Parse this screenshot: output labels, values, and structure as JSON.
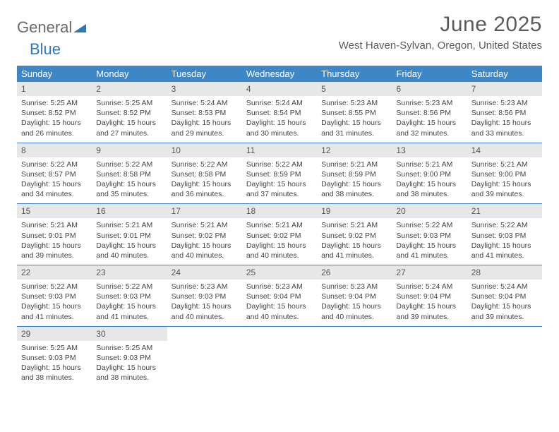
{
  "brand": {
    "word1": "General",
    "word2": "Blue"
  },
  "title": "June 2025",
  "location": "West Haven-Sylvan, Oregon, United States",
  "colors": {
    "header_bg": "#3d87c7",
    "header_text": "#ffffff",
    "daynum_bg": "#e7e7e7",
    "rule": "#3d87c7",
    "body_text": "#444444",
    "title_text": "#5a5a5a"
  },
  "daysOfWeek": [
    "Sunday",
    "Monday",
    "Tuesday",
    "Wednesday",
    "Thursday",
    "Friday",
    "Saturday"
  ],
  "weeks": [
    [
      {
        "n": "1",
        "sunrise": "Sunrise: 5:25 AM",
        "sunset": "Sunset: 8:52 PM",
        "daylight": "Daylight: 15 hours and 26 minutes."
      },
      {
        "n": "2",
        "sunrise": "Sunrise: 5:25 AM",
        "sunset": "Sunset: 8:52 PM",
        "daylight": "Daylight: 15 hours and 27 minutes."
      },
      {
        "n": "3",
        "sunrise": "Sunrise: 5:24 AM",
        "sunset": "Sunset: 8:53 PM",
        "daylight": "Daylight: 15 hours and 29 minutes."
      },
      {
        "n": "4",
        "sunrise": "Sunrise: 5:24 AM",
        "sunset": "Sunset: 8:54 PM",
        "daylight": "Daylight: 15 hours and 30 minutes."
      },
      {
        "n": "5",
        "sunrise": "Sunrise: 5:23 AM",
        "sunset": "Sunset: 8:55 PM",
        "daylight": "Daylight: 15 hours and 31 minutes."
      },
      {
        "n": "6",
        "sunrise": "Sunrise: 5:23 AM",
        "sunset": "Sunset: 8:56 PM",
        "daylight": "Daylight: 15 hours and 32 minutes."
      },
      {
        "n": "7",
        "sunrise": "Sunrise: 5:23 AM",
        "sunset": "Sunset: 8:56 PM",
        "daylight": "Daylight: 15 hours and 33 minutes."
      }
    ],
    [
      {
        "n": "8",
        "sunrise": "Sunrise: 5:22 AM",
        "sunset": "Sunset: 8:57 PM",
        "daylight": "Daylight: 15 hours and 34 minutes."
      },
      {
        "n": "9",
        "sunrise": "Sunrise: 5:22 AM",
        "sunset": "Sunset: 8:58 PM",
        "daylight": "Daylight: 15 hours and 35 minutes."
      },
      {
        "n": "10",
        "sunrise": "Sunrise: 5:22 AM",
        "sunset": "Sunset: 8:58 PM",
        "daylight": "Daylight: 15 hours and 36 minutes."
      },
      {
        "n": "11",
        "sunrise": "Sunrise: 5:22 AM",
        "sunset": "Sunset: 8:59 PM",
        "daylight": "Daylight: 15 hours and 37 minutes."
      },
      {
        "n": "12",
        "sunrise": "Sunrise: 5:21 AM",
        "sunset": "Sunset: 8:59 PM",
        "daylight": "Daylight: 15 hours and 38 minutes."
      },
      {
        "n": "13",
        "sunrise": "Sunrise: 5:21 AM",
        "sunset": "Sunset: 9:00 PM",
        "daylight": "Daylight: 15 hours and 38 minutes."
      },
      {
        "n": "14",
        "sunrise": "Sunrise: 5:21 AM",
        "sunset": "Sunset: 9:00 PM",
        "daylight": "Daylight: 15 hours and 39 minutes."
      }
    ],
    [
      {
        "n": "15",
        "sunrise": "Sunrise: 5:21 AM",
        "sunset": "Sunset: 9:01 PM",
        "daylight": "Daylight: 15 hours and 39 minutes."
      },
      {
        "n": "16",
        "sunrise": "Sunrise: 5:21 AM",
        "sunset": "Sunset: 9:01 PM",
        "daylight": "Daylight: 15 hours and 40 minutes."
      },
      {
        "n": "17",
        "sunrise": "Sunrise: 5:21 AM",
        "sunset": "Sunset: 9:02 PM",
        "daylight": "Daylight: 15 hours and 40 minutes."
      },
      {
        "n": "18",
        "sunrise": "Sunrise: 5:21 AM",
        "sunset": "Sunset: 9:02 PM",
        "daylight": "Daylight: 15 hours and 40 minutes."
      },
      {
        "n": "19",
        "sunrise": "Sunrise: 5:21 AM",
        "sunset": "Sunset: 9:02 PM",
        "daylight": "Daylight: 15 hours and 41 minutes."
      },
      {
        "n": "20",
        "sunrise": "Sunrise: 5:22 AM",
        "sunset": "Sunset: 9:03 PM",
        "daylight": "Daylight: 15 hours and 41 minutes."
      },
      {
        "n": "21",
        "sunrise": "Sunrise: 5:22 AM",
        "sunset": "Sunset: 9:03 PM",
        "daylight": "Daylight: 15 hours and 41 minutes."
      }
    ],
    [
      {
        "n": "22",
        "sunrise": "Sunrise: 5:22 AM",
        "sunset": "Sunset: 9:03 PM",
        "daylight": "Daylight: 15 hours and 41 minutes."
      },
      {
        "n": "23",
        "sunrise": "Sunrise: 5:22 AM",
        "sunset": "Sunset: 9:03 PM",
        "daylight": "Daylight: 15 hours and 41 minutes."
      },
      {
        "n": "24",
        "sunrise": "Sunrise: 5:23 AM",
        "sunset": "Sunset: 9:03 PM",
        "daylight": "Daylight: 15 hours and 40 minutes."
      },
      {
        "n": "25",
        "sunrise": "Sunrise: 5:23 AM",
        "sunset": "Sunset: 9:04 PM",
        "daylight": "Daylight: 15 hours and 40 minutes."
      },
      {
        "n": "26",
        "sunrise": "Sunrise: 5:23 AM",
        "sunset": "Sunset: 9:04 PM",
        "daylight": "Daylight: 15 hours and 40 minutes."
      },
      {
        "n": "27",
        "sunrise": "Sunrise: 5:24 AM",
        "sunset": "Sunset: 9:04 PM",
        "daylight": "Daylight: 15 hours and 39 minutes."
      },
      {
        "n": "28",
        "sunrise": "Sunrise: 5:24 AM",
        "sunset": "Sunset: 9:04 PM",
        "daylight": "Daylight: 15 hours and 39 minutes."
      }
    ],
    [
      {
        "n": "29",
        "sunrise": "Sunrise: 5:25 AM",
        "sunset": "Sunset: 9:03 PM",
        "daylight": "Daylight: 15 hours and 38 minutes."
      },
      {
        "n": "30",
        "sunrise": "Sunrise: 5:25 AM",
        "sunset": "Sunset: 9:03 PM",
        "daylight": "Daylight: 15 hours and 38 minutes."
      },
      {
        "empty": true
      },
      {
        "empty": true
      },
      {
        "empty": true
      },
      {
        "empty": true
      },
      {
        "empty": true
      }
    ]
  ]
}
